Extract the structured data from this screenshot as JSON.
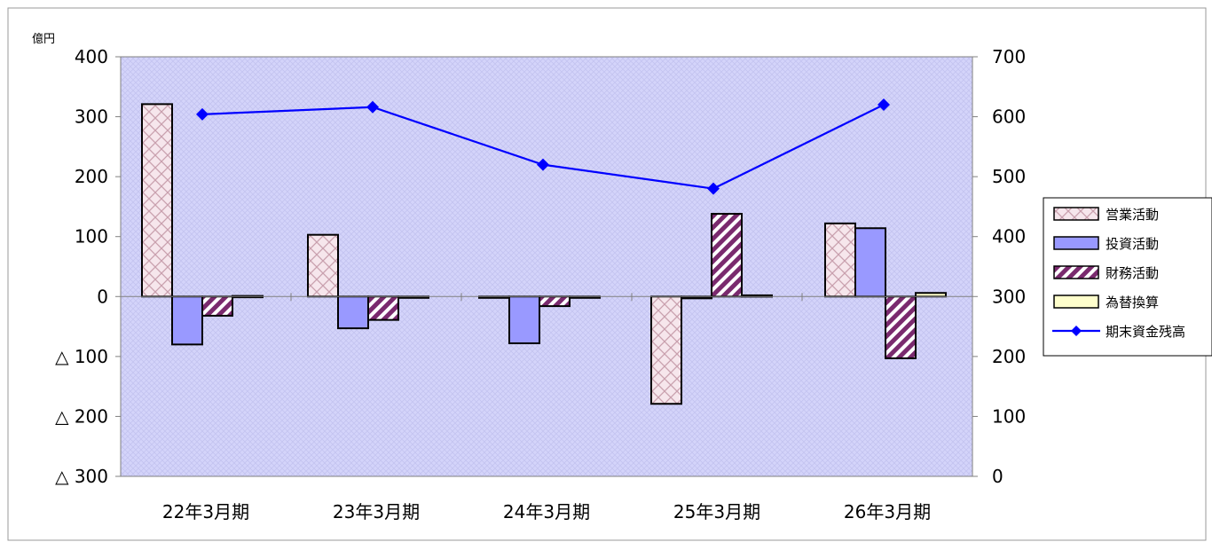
{
  "chart_data": {
    "type": "bar",
    "y_unit_label": "億円",
    "categories": [
      "22年3月期",
      "23年3月期",
      "24年3月期",
      "25年3月期",
      "26年3月期"
    ],
    "series": [
      {
        "name": "営業活動",
        "type": "bar",
        "axis": "left",
        "values": [
          321,
          103,
          -2,
          -179,
          122
        ],
        "pattern": "crosshatch",
        "color": "#f2dce4"
      },
      {
        "name": "投資活動",
        "type": "bar",
        "axis": "left",
        "values": [
          -80,
          -53,
          -78,
          -3,
          114
        ],
        "pattern": "solid",
        "color": "#9999ff"
      },
      {
        "name": "財務活動",
        "type": "bar",
        "axis": "left",
        "values": [
          -32,
          -39,
          -16,
          138,
          -103
        ],
        "pattern": "diagonal",
        "color": "#7a2a6e"
      },
      {
        "name": "為替換算",
        "type": "bar",
        "axis": "left",
        "values": [
          1,
          0,
          0,
          2,
          6
        ],
        "pattern": "solid",
        "color": "#ffffcc"
      },
      {
        "name": "期末資金残高",
        "type": "line",
        "axis": "right",
        "values": [
          604,
          616,
          520,
          480,
          620
        ],
        "color": "#0000ff",
        "marker": "diamond"
      }
    ],
    "y_left": {
      "range": [
        -300,
        400
      ],
      "ticks": [
        400,
        300,
        200,
        100,
        0,
        -100,
        -200,
        -300
      ],
      "tick_labels": [
        "400",
        "300",
        "200",
        "100",
        "0",
        "△ 100",
        "△ 200",
        "△ 300"
      ]
    },
    "y_right": {
      "range": [
        0,
        700
      ],
      "ticks": [
        700,
        600,
        500,
        400,
        300,
        200,
        100,
        0
      ],
      "tick_labels": [
        "700",
        "600",
        "500",
        "400",
        "300",
        "200",
        "100",
        "0"
      ]
    },
    "grid": false,
    "legend_position": "right",
    "plot_background": "#ccccff"
  }
}
